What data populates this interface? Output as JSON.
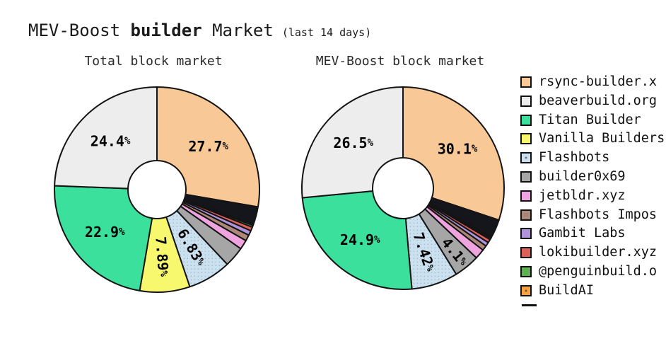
{
  "header": {
    "title_prefix": "MEV-Boost ",
    "title_bold": "builder",
    "title_suffix": " Market",
    "title_note": "(last 14 days)"
  },
  "legend": {
    "position": "right",
    "items": [
      {
        "label": "rsync-builder.x",
        "color": "#F8C996"
      },
      {
        "label": "beaverbuild.org",
        "color": "#EDEDED"
      },
      {
        "label": "Titan Builder",
        "color": "#3CE09D"
      },
      {
        "label": "Vanilla Builders",
        "color": "#F8F86F"
      },
      {
        "label": "Flashbots",
        "color": "#CBE1EF",
        "pattern": "dots"
      },
      {
        "label": "builder0x69",
        "color": "#A6A6A6"
      },
      {
        "label": "jetbldr.xyz",
        "color": "#EFA4DF"
      },
      {
        "label": "Flashbots Impos",
        "color": "#AB8877"
      },
      {
        "label": "Gambit Labs",
        "color": "#AF94DC"
      },
      {
        "label": "lokibuilder.xyz",
        "color": "#DF605B"
      },
      {
        "label": "@penguinbuild.o",
        "color": "#5FB053"
      },
      {
        "label": "BuildAI",
        "color": "#F7A23E",
        "pattern": "dots"
      },
      {
        "label": "",
        "color": "#15151C",
        "truncated": true
      }
    ]
  },
  "chart_data": [
    {
      "type": "pie",
      "subtype": "donut",
      "title": "Total block market",
      "hole_ratio": 0.28,
      "start_angle": "top",
      "layout_hint": "largest slice clockwise from 12 o'clock, remaining slices counterclockwise in descending order",
      "categories": [
        "rsync-builder.x",
        "beaverbuild.org",
        "Titan Builder",
        "Vanilla Builders",
        "Flashbots",
        "builder0x69",
        "jetbldr.xyz",
        "Flashbots Impos",
        "Gambit Labs",
        "lokibuilder.xyz",
        "@penguinbuild.o",
        "BuildAI",
        ""
      ],
      "values": [
        27.7,
        24.4,
        22.9,
        7.89,
        6.83,
        3.2,
        1.5,
        0.95,
        0.75,
        0.6,
        0.3,
        0.18,
        2.8
      ],
      "slice_labels": [
        "27.7%",
        "24.4%",
        "22.9%",
        "7.89%",
        "6.83%",
        null,
        null,
        null,
        null,
        null,
        null,
        null,
        null
      ]
    },
    {
      "type": "pie",
      "subtype": "donut",
      "title": "MEV-Boost block market",
      "hole_ratio": 0.3,
      "start_angle": "top",
      "layout_hint": "largest slice clockwise from 12 o'clock, remaining slices counterclockwise in descending order",
      "categories": [
        "rsync-builder.x",
        "beaverbuild.org",
        "Titan Builder",
        "Vanilla Builders",
        "Flashbots",
        "builder0x69",
        "jetbldr.xyz",
        "Flashbots Impos",
        "Gambit Labs",
        "lokibuilder.xyz",
        "@penguinbuild.o",
        "BuildAI",
        ""
      ],
      "values": [
        30.1,
        26.5,
        24.9,
        0,
        7.42,
        4.1,
        1.6,
        0.8,
        0.65,
        0.55,
        0.25,
        0.13,
        3.0
      ],
      "slice_labels": [
        "30.1%",
        "26.5%",
        "24.9%",
        null,
        "7.42%",
        "4.1%",
        null,
        null,
        null,
        null,
        null,
        null,
        null
      ]
    }
  ]
}
